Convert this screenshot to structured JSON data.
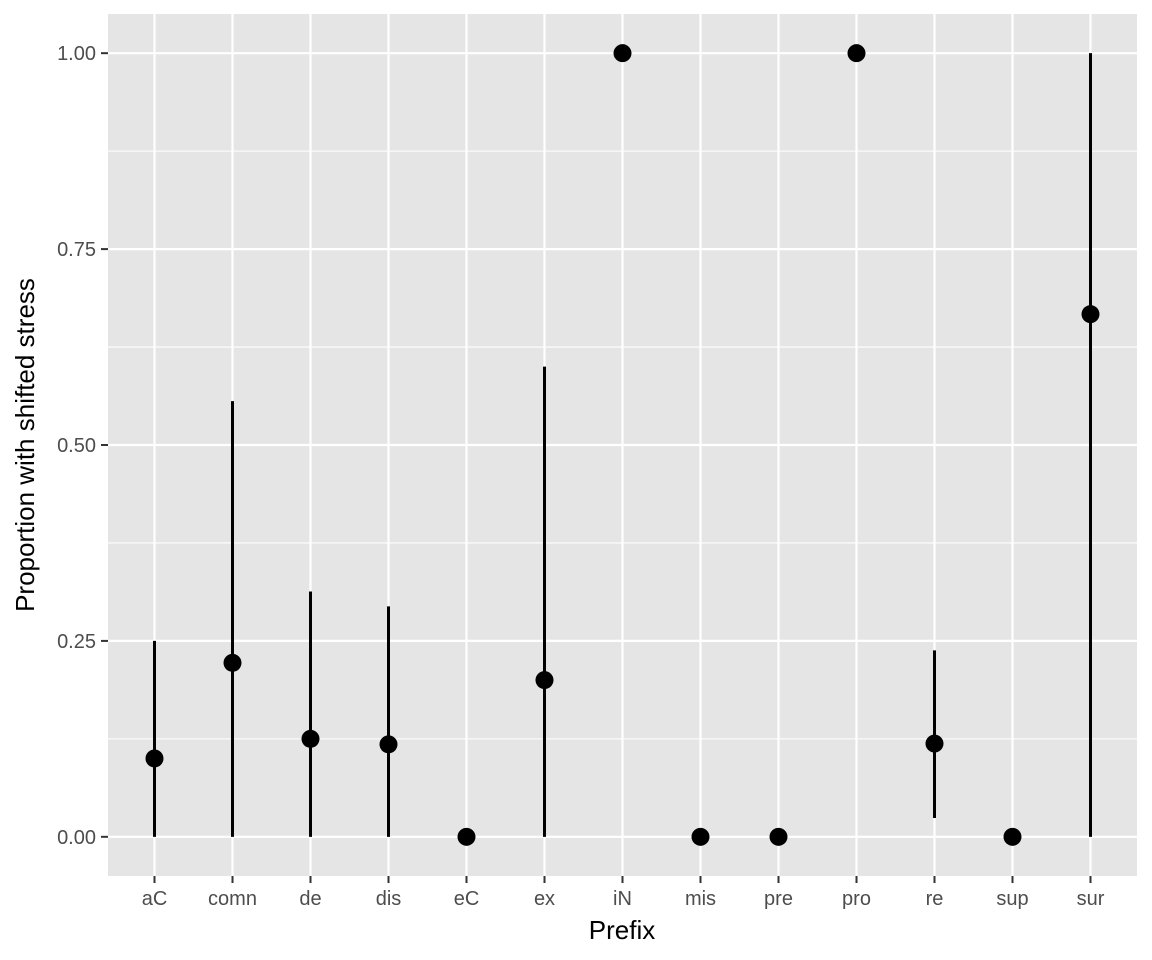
{
  "chart_data": {
    "type": "pointrange",
    "title": "",
    "xlabel": "Prefix",
    "ylabel": "Proportion with shifted stress",
    "categories": [
      "aC",
      "comn",
      "de",
      "dis",
      "eC",
      "ex",
      "iN",
      "mis",
      "pre",
      "pro",
      "re",
      "sup",
      "sur"
    ],
    "values": [
      0.1,
      0.222,
      0.125,
      0.118,
      0.0,
      0.2,
      1.0,
      0.0,
      0.0,
      1.0,
      0.119,
      0.0,
      0.667
    ],
    "lower": [
      0.0,
      0.0,
      0.0,
      0.0,
      0.0,
      0.0,
      1.0,
      0.0,
      0.0,
      1.0,
      0.024,
      0.0,
      0.0
    ],
    "upper": [
      0.25,
      0.556,
      0.313,
      0.294,
      0.0,
      0.6,
      1.0,
      0.0,
      0.0,
      1.0,
      0.238,
      0.0,
      1.0
    ],
    "ylim": [
      -0.05,
      1.05
    ],
    "y_ticks": [
      0.0,
      0.25,
      0.5,
      0.75,
      1.0
    ],
    "y_tick_labels": [
      "0.00",
      "0.25",
      "0.50",
      "0.75",
      "1.00"
    ],
    "grid": true,
    "legend": "none",
    "colors": {
      "panel": "#e5e5e5",
      "grid": "#ffffff",
      "mark": "#000000",
      "tick_text": "#4d4d4d"
    }
  }
}
